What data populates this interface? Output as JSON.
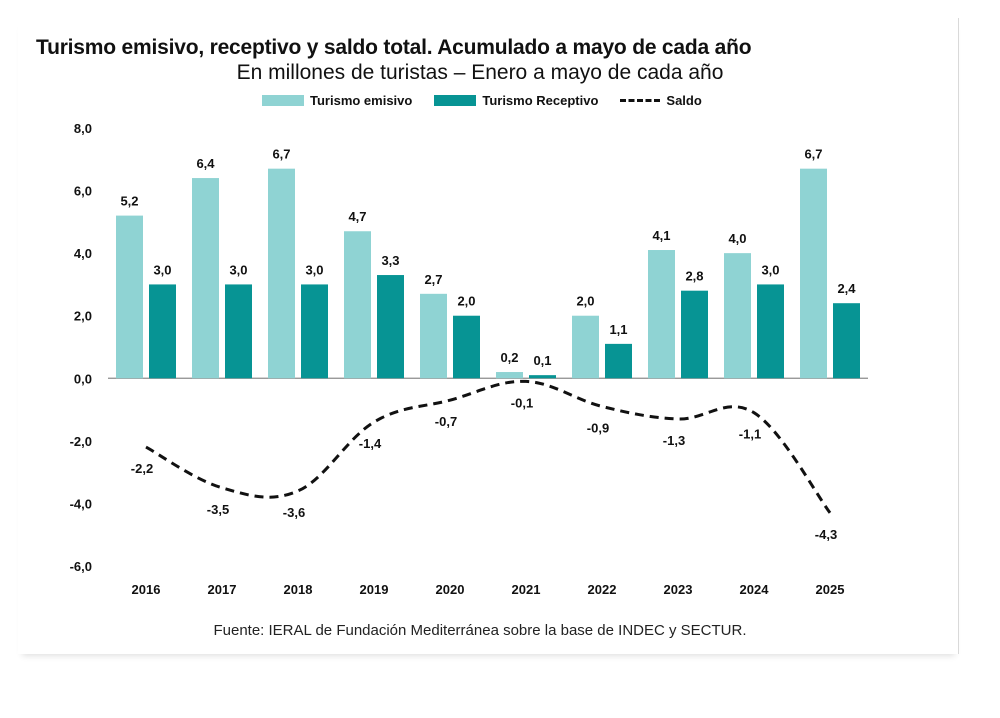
{
  "chart_data": {
    "type": "bar",
    "title": "Turismo emisivo, receptivo y saldo total. Acumulado a mayo de cada año",
    "subtitle": "En millones de turistas – Enero a mayo de cada año",
    "categories": [
      "2016",
      "2017",
      "2018",
      "2019",
      "2020",
      "2021",
      "2022",
      "2023",
      "2024",
      "2025"
    ],
    "series": [
      {
        "name": "Turismo emisivo",
        "kind": "bar",
        "color": "#8fd3d3",
        "values": [
          5.2,
          6.4,
          6.7,
          4.7,
          2.7,
          0.2,
          2.0,
          4.1,
          4.0,
          6.7
        ],
        "labels": [
          "5,2",
          "6,4",
          "6,7",
          "4,7",
          "2,7",
          "0,2",
          "2,0",
          "4,1",
          "4,0",
          "6,7"
        ]
      },
      {
        "name": "Turismo Receptivo",
        "kind": "bar",
        "color": "#079494",
        "values": [
          3.0,
          3.0,
          3.0,
          3.3,
          2.0,
          0.1,
          1.1,
          2.8,
          3.0,
          2.4
        ],
        "labels": [
          "3,0",
          "3,0",
          "3,0",
          "3,3",
          "2,0",
          "0,1",
          "1,1",
          "2,8",
          "3,0",
          "2,4"
        ]
      },
      {
        "name": "Saldo",
        "kind": "line",
        "style": "dashed",
        "color": "#111111",
        "values": [
          -2.2,
          -3.5,
          -3.6,
          -1.4,
          -0.7,
          -0.1,
          -0.9,
          -1.3,
          -1.1,
          -4.3
        ],
        "labels": [
          "-2,2",
          "-3,5",
          "-3,6",
          "-1,4",
          "-0,7",
          "-0,1",
          "-0,9",
          "-1,3",
          "-1,1",
          "-4,3"
        ]
      }
    ],
    "ylim": [
      -6.0,
      8.0
    ],
    "yticks": [
      8.0,
      6.0,
      4.0,
      2.0,
      0.0,
      -2.0,
      -4.0,
      -6.0
    ],
    "ytick_labels": [
      "8,0",
      "6,0",
      "4,0",
      "2,0",
      "0,0",
      "-2,0",
      "-4,0",
      "-6,0"
    ],
    "xlabel": "",
    "ylabel": "",
    "legend_position": "top",
    "grid": false
  },
  "footer": "Fuente: IERAL de Fundación Mediterránea sobre la base de INDEC y SECTUR."
}
